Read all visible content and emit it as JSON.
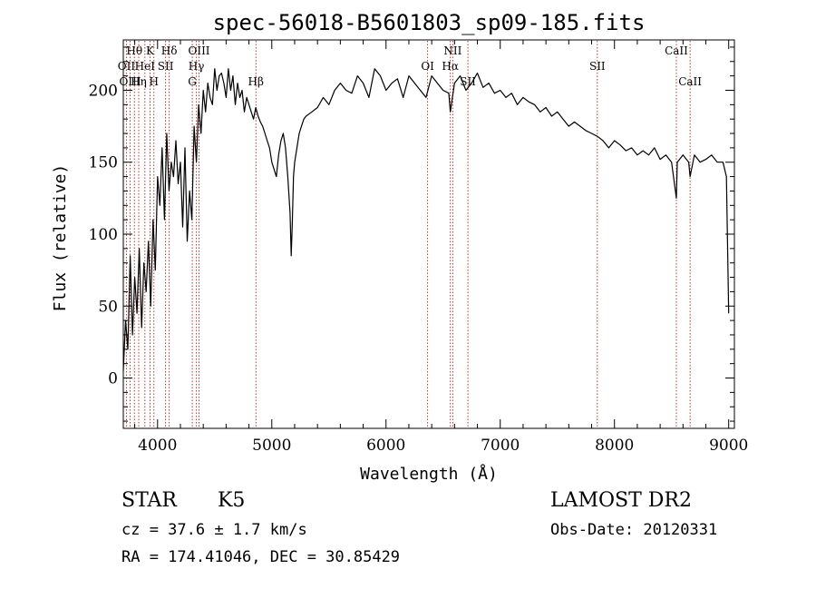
{
  "chart_data": {
    "type": "line",
    "title": "spec-56018-B5601803_sp09-185.fits",
    "xlabel": "Wavelength (Å)",
    "ylabel": "Flux (relative)",
    "xlim": [
      3700,
      9050
    ],
    "ylim": [
      -35,
      235
    ],
    "xticks": [
      4000,
      5000,
      6000,
      7000,
      8000,
      9000
    ],
    "yticks": [
      0,
      50,
      100,
      150,
      200
    ],
    "grid": false,
    "series": [
      {
        "x": [
          3700,
          3720,
          3740,
          3760,
          3780,
          3800,
          3820,
          3840,
          3860,
          3880,
          3900,
          3920,
          3940,
          3960,
          3980,
          4000,
          4020,
          4040,
          4060,
          4080,
          4100,
          4120,
          4140,
          4160,
          4180,
          4200,
          4220,
          4240,
          4260,
          4280,
          4300,
          4320,
          4340,
          4360,
          4380,
          4400,
          4420,
          4440,
          4460,
          4480,
          4500,
          4520,
          4540,
          4560,
          4580,
          4600,
          4620,
          4640,
          4660,
          4680,
          4700,
          4720,
          4740,
          4760,
          4780,
          4800,
          4820,
          4840,
          4860,
          4880,
          4900,
          4920,
          4940,
          4960,
          4980,
          5000,
          5020,
          5040,
          5060,
          5080,
          5100,
          5120,
          5140,
          5160,
          5170,
          5180,
          5190,
          5200,
          5220,
          5240,
          5260,
          5280,
          5300,
          5350,
          5400,
          5450,
          5500,
          5550,
          5600,
          5650,
          5700,
          5750,
          5800,
          5850,
          5900,
          5950,
          6000,
          6050,
          6100,
          6150,
          6200,
          6250,
          6300,
          6350,
          6400,
          6450,
          6500,
          6550,
          6563,
          6600,
          6650,
          6700,
          6750,
          6800,
          6850,
          6900,
          6950,
          7000,
          7050,
          7100,
          7150,
          7200,
          7250,
          7300,
          7350,
          7400,
          7450,
          7500,
          7550,
          7600,
          7650,
          7700,
          7750,
          7800,
          7850,
          7900,
          7950,
          8000,
          8050,
          8100,
          8150,
          8200,
          8250,
          8300,
          8350,
          8400,
          8450,
          8500,
          8542,
          8550,
          8600,
          8650,
          8662,
          8700,
          8750,
          8800,
          8850,
          8900,
          8950,
          8980,
          9000
        ],
        "y": [
          5,
          40,
          20,
          85,
          30,
          70,
          45,
          90,
          35,
          80,
          60,
          95,
          50,
          110,
          75,
          140,
          120,
          160,
          110,
          170,
          130,
          150,
          140,
          165,
          135,
          150,
          105,
          160,
          95,
          130,
          110,
          175,
          150,
          190,
          170,
          200,
          185,
          205,
          195,
          190,
          215,
          200,
          210,
          212,
          205,
          195,
          215,
          200,
          210,
          190,
          205,
          195,
          200,
          185,
          195,
          190,
          185,
          180,
          188,
          182,
          178,
          175,
          170,
          165,
          160,
          150,
          145,
          140,
          155,
          165,
          170,
          160,
          140,
          115,
          85,
          110,
          140,
          150,
          160,
          170,
          175,
          180,
          182,
          185,
          188,
          195,
          190,
          200,
          205,
          200,
          198,
          210,
          205,
          195,
          215,
          210,
          200,
          205,
          208,
          195,
          210,
          205,
          200,
          195,
          210,
          205,
          200,
          198,
          185,
          205,
          210,
          200,
          205,
          212,
          202,
          205,
          198,
          200,
          195,
          198,
          190,
          195,
          192,
          190,
          185,
          188,
          182,
          185,
          180,
          175,
          178,
          175,
          172,
          170,
          168,
          165,
          160,
          165,
          162,
          158,
          160,
          155,
          158,
          155,
          160,
          152,
          155,
          150,
          125,
          150,
          155,
          150,
          140,
          155,
          150,
          152,
          155,
          150,
          150,
          140,
          45
        ]
      }
    ],
    "lines": [
      {
        "label": "Hθ",
        "x": 3797,
        "row": 1
      },
      {
        "label": "OII",
        "x": 3727,
        "row": 2
      },
      {
        "label": "OIII",
        "x": 3760,
        "row": 3
      },
      {
        "label": "HeI",
        "x": 3889,
        "row": 2
      },
      {
        "label": "Hη",
        "x": 3835,
        "row": 3
      },
      {
        "label": "K",
        "x": 3934,
        "row": 1
      },
      {
        "label": "SII",
        "x": 4070,
        "row": 2
      },
      {
        "label": "H",
        "x": 3968,
        "row": 3
      },
      {
        "label": "Hδ",
        "x": 4102,
        "row": 1
      },
      {
        "label": "OIII",
        "x": 4363,
        "row": 1
      },
      {
        "label": "Hγ",
        "x": 4340,
        "row": 2
      },
      {
        "label": "G",
        "x": 4304,
        "row": 3
      },
      {
        "label": "Hβ",
        "x": 4861,
        "row": 3
      },
      {
        "label": "OI",
        "x": 6364,
        "row": 2
      },
      {
        "label": "NII",
        "x": 6584,
        "row": 1
      },
      {
        "label": "Hα",
        "x": 6563,
        "row": 2
      },
      {
        "label": "SII",
        "x": 6717,
        "row": 3
      },
      {
        "label": "SII",
        "x": 7850,
        "row": 2
      },
      {
        "label": "CaII",
        "x": 8542,
        "row": 1
      },
      {
        "label": "CaII",
        "x": 8662,
        "row": 3
      }
    ]
  },
  "info": {
    "class": "STAR",
    "subclass": "K5",
    "cz": "cz = 37.6 ± 1.7 km/s",
    "coords": "RA = 174.41046, DEC =  30.85429",
    "survey": "LAMOST DR2",
    "obsdate": "Obs-Date: 20120331"
  },
  "colors": {
    "spectrum": "#000000",
    "line_markers": "#b22222"
  }
}
